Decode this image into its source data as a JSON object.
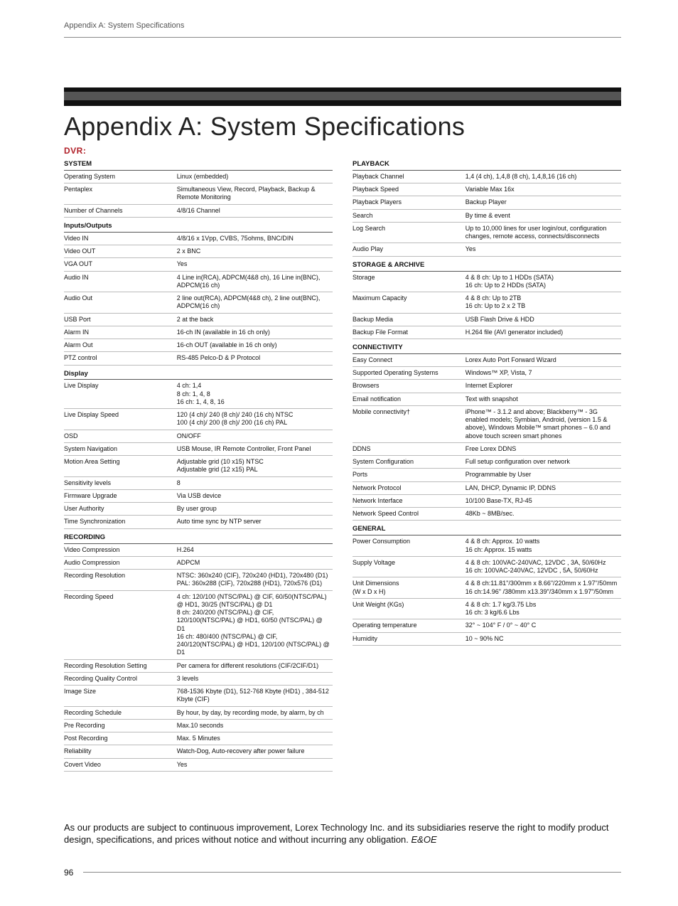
{
  "header": {
    "section": "Appendix A: System Specifications"
  },
  "title": "Appendix A: System Specifications",
  "dvr": "DVR:",
  "footer": {
    "page": "96"
  },
  "disclaimer": {
    "text": "As our products are subject to continuous improvement, Lorex Technology Inc. and its subsidiaries reserve the right to modify product design, specifications, and prices without notice and without incurring any obligation. ",
    "eoe": "E&OE"
  },
  "left": [
    {
      "type": "section",
      "label": "SYSTEM"
    },
    {
      "k": "Operating System",
      "v": "Linux (embedded)"
    },
    {
      "k": "Pentaplex",
      "v": "Simultaneous View, Record, Playback, Backup & Remote Monitoring"
    },
    {
      "k": "Number of Channels",
      "v": "4/8/16 Channel"
    },
    {
      "type": "section",
      "label": "Inputs/Outputs"
    },
    {
      "k": "Video IN",
      "v": "4/8/16 x 1Vpp, CVBS, 75ohms, BNC/DIN"
    },
    {
      "k": "Video OUT",
      "v": "2 x BNC"
    },
    {
      "k": "VGA OUT",
      "v": "Yes"
    },
    {
      "k": "Audio IN",
      "v": "4 Line in(RCA), ADPCM(4&8 ch), 16 Line in(BNC), ADPCM(16 ch)"
    },
    {
      "k": "Audio Out",
      "v": "2 line out(RCA), ADPCM(4&8 ch), 2 line out(BNC), ADPCM(16 ch)"
    },
    {
      "k": "USB Port",
      "v": "2 at the back"
    },
    {
      "k": "Alarm IN",
      "v": "16-ch IN (available in 16 ch only)"
    },
    {
      "k": "Alarm Out",
      "v": "16-ch OUT (available in 16 ch only)"
    },
    {
      "k": "PTZ control",
      "v": "RS-485 Pelco-D & P Protocol"
    },
    {
      "type": "section",
      "label": "Display"
    },
    {
      "k": "Live Display",
      "v": "4 ch: 1,4\n8 ch: 1, 4, 8\n16 ch: 1, 4, 8, 16"
    },
    {
      "k": "Live Display Speed",
      "v": "120 (4 ch)/ 240 (8 ch)/ 240 (16 ch) NTSC\n100 (4 ch)/ 200 (8 ch)/ 200 (16 ch) PAL"
    },
    {
      "k": "OSD",
      "v": "ON/OFF"
    },
    {
      "k": "System Navigation",
      "v": "USB Mouse, IR Remote Controller, Front Panel"
    },
    {
      "k": "Motion Area Setting",
      "v": "Adjustable grid (10 x15) NTSC\nAdjustable grid (12 x15) PAL"
    },
    {
      "k": "Sensitivity levels",
      "v": "8"
    },
    {
      "k": "Firmware Upgrade",
      "v": "Via USB device"
    },
    {
      "k": "User Authority",
      "v": "By user group"
    },
    {
      "k": "Time Synchronization",
      "v": "Auto time sync by NTP server"
    },
    {
      "type": "section",
      "label": "RECORDING"
    },
    {
      "k": "Video Compression",
      "v": "H.264"
    },
    {
      "k": "Audio Compression",
      "v": "ADPCM"
    },
    {
      "k": "Recording Resolution",
      "v": "NTSC: 360x240 (CIF), 720x240 (HD1), 720x480 (D1)\nPAL: 360x288 (CIF), 720x288 (HD1), 720x576 (D1)"
    },
    {
      "k": "Recording Speed",
      "v": "4 ch: 120/100 (NTSC/PAL) @ CIF, 60/50(NTSC/PAL) @ HD1, 30/25 (NTSC/PAL) @ D1\n8 ch: 240/200 (NTSC/PAL) @ CIF, 120/100(NTSC/PAL) @ HD1, 60/50 (NTSC/PAL) @ D1\n16 ch: 480/400 (NTSC/PAL) @ CIF, 240/120(NTSC/PAL) @ HD1, 120/100 (NTSC/PAL) @ D1"
    },
    {
      "k": "Recording Resolution Setting",
      "v": "Per camera for different resolutions (CIF/2CIF/D1)"
    },
    {
      "k": "Recording Quality Control",
      "v": "3 levels"
    },
    {
      "k": "Image Size",
      "v": "768-1536 Kbyte (D1), 512-768 Kbyte (HD1) , 384-512 Kbyte (CIF)"
    },
    {
      "k": "Recording Schedule",
      "v": "By hour, by day, by recording mode, by alarm, by ch"
    },
    {
      "k": "Pre Recording",
      "v": "Max.10 seconds"
    },
    {
      "k": "Post Recording",
      "v": "Max. 5 Minutes"
    },
    {
      "k": "Reliability",
      "v": "Watch-Dog, Auto-recovery after power failure"
    },
    {
      "k": "Covert Video",
      "v": "Yes"
    }
  ],
  "right": [
    {
      "type": "section",
      "label": "PLAYBACK"
    },
    {
      "k": "Playback Channel",
      "v": "1,4 (4 ch), 1,4,8 (8 ch), 1,4,8,16 (16 ch)"
    },
    {
      "k": "Playback Speed",
      "v": "Variable Max 16x"
    },
    {
      "k": "Playback Players",
      "v": "Backup Player"
    },
    {
      "k": "Search",
      "v": "By time & event"
    },
    {
      "k": "Log Search",
      "v": "Up to 10,000 lines for user login/out, configuration changes, remote access, connects/disconnects"
    },
    {
      "k": "Audio Play",
      "v": "Yes"
    },
    {
      "type": "section",
      "label": "STORAGE & ARCHIVE"
    },
    {
      "k": "Storage",
      "v": "4 & 8 ch: Up to 1 HDDs (SATA)\n16 ch: Up to 2 HDDs (SATA)"
    },
    {
      "k": "Maximum Capacity",
      "v": "4 & 8 ch: Up to 2TB\n16 ch: Up to 2 x 2 TB"
    },
    {
      "k": "Backup Media",
      "v": "USB Flash Drive & HDD"
    },
    {
      "k": "Backup File Format",
      "v": "H.264 file (AVI generator included)"
    },
    {
      "type": "section",
      "label": "CONNECTIVITY"
    },
    {
      "k": "Easy Connect",
      "v": "Lorex Auto Port Forward Wizard"
    },
    {
      "k": "Supported Operating Systems",
      "v": "Windows™ XP, Vista, 7"
    },
    {
      "k": "Browsers",
      "v": "Internet Explorer"
    },
    {
      "k": "Email notification",
      "v": "Text with snapshot"
    },
    {
      "k": "Mobile connectivity†",
      "v": "iPhone™ - 3.1.2 and above; Blackberry™ - 3G enabled models; Symbian, Android, (version 1.5 & above), Windows Mobile™ smart phones – 6.0 and above touch screen smart phones"
    },
    {
      "k": "DDNS",
      "v": "Free Lorex DDNS"
    },
    {
      "k": "System Configuration",
      "v": "Full setup configuration over network"
    },
    {
      "k": "Ports",
      "v": "Programmable by User"
    },
    {
      "k": "Network Protocol",
      "v": "LAN, DHCP, Dynamic IP, DDNS"
    },
    {
      "k": "Network Interface",
      "v": "10/100 Base-TX, RJ-45"
    },
    {
      "k": "Network Speed Control",
      "v": "48Kb ~ 8MB/sec."
    },
    {
      "type": "section",
      "label": "GENERAL"
    },
    {
      "k": "Power Consumption",
      "v": "4 & 8 ch: Approx. 10 watts\n16 ch: Approx. 15 watts"
    },
    {
      "k": "Supply Voltage",
      "v": "4 & 8 ch: 100VAC-240VAC, 12VDC , 3A, 50/60Hz\n16 ch: 100VAC-240VAC, 12VDC , 5A, 50/60Hz"
    },
    {
      "k": "Unit Dimensions\n(W x D x H)",
      "v": "4 & 8 ch:11.81\"/300mm x 8.66\"/220mm x 1.97\"/50mm\n16 ch:14.96\" /380mm x13.39\"/340mm x 1.97\"/50mm"
    },
    {
      "k": "Unit Weight (KGs)",
      "v": "4 & 8 ch: 1.7 kg/3.75 Lbs\n16 ch: 3 kg/6.6 Lbs"
    },
    {
      "k": "Operating temperature",
      "v": "32° ~ 104° F / 0° ~ 40° C"
    },
    {
      "k": "Humidity",
      "v": "10 ~ 90% NC"
    }
  ]
}
